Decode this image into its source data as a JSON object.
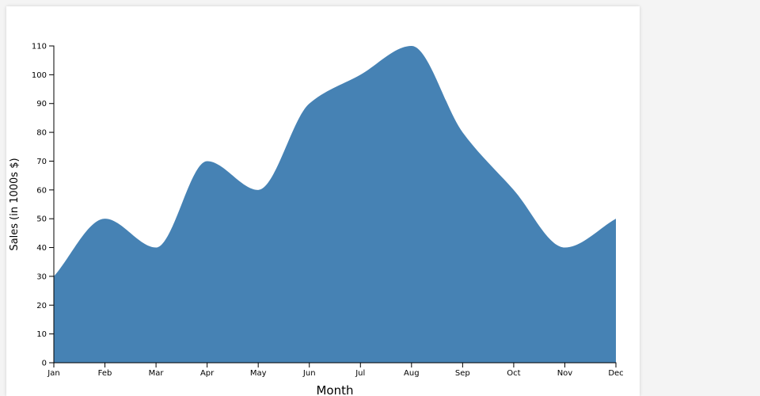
{
  "chart_data": {
    "type": "area",
    "x_label": "Month",
    "y_label": "Sales (in 1000s $)",
    "categories": [
      "Jan",
      "Feb",
      "Mar",
      "Apr",
      "May",
      "Jun",
      "Jul",
      "Aug",
      "Sep",
      "Oct",
      "Nov",
      "Dec"
    ],
    "values": [
      30,
      50,
      40,
      70,
      60,
      90,
      100,
      110,
      80,
      60,
      40,
      50
    ],
    "color": "#4682b4",
    "ylim": [
      0,
      110
    ],
    "yticks": [
      0,
      10,
      20,
      30,
      40,
      50,
      60,
      70,
      80,
      90,
      100,
      110
    ]
  }
}
